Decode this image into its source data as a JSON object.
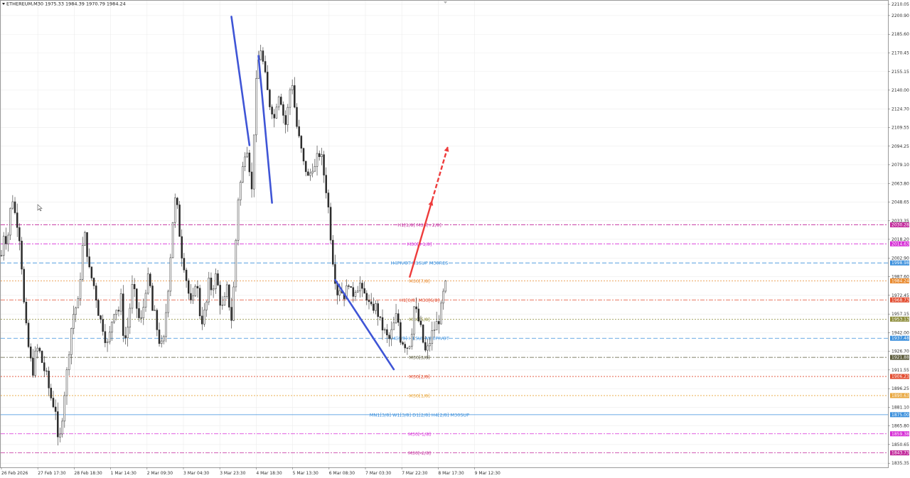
{
  "header": {
    "symbol_line": "ETHEREUM,M30  1975.33 1984.39 1970.79 1984.24"
  },
  "colors": {
    "candle": "#2b2b2b",
    "grid": "#ececec",
    "trendline": "#3f55d6",
    "forecast": "#ee3b3b",
    "axis_text": "#303030"
  },
  "chart_data": {
    "type": "line",
    "title": "ETHEREUM,M30",
    "ohlc_last": {
      "open": 1975.33,
      "high": 1984.39,
      "low": 1970.79,
      "close": 1984.24
    },
    "y_ticks": [
      "2210.05",
      "2200.90",
      "2185.60",
      "2170.45",
      "2155.15",
      "2140.00",
      "2124.70",
      "2109.55",
      "2094.25",
      "2079.10",
      "2063.80",
      "2048.65",
      "2033.35",
      "2018.20",
      "2002.90",
      "1987.60",
      "1972.45",
      "1957.15",
      "1942.00",
      "1926.70",
      "1911.55",
      "1896.25",
      "1881.10",
      "1865.80",
      "1850.65",
      "1835.35"
    ],
    "ylim": [
      1832,
      2213
    ],
    "x_ticks": [
      "26 Feb 2026",
      "27 Feb 17:30",
      "28 Feb 18:30",
      "1 Mar 14:30",
      "2 Mar 09:30",
      "3 Mar 04:30",
      "3 Mar 23:30",
      "4 Mar 18:30",
      "5 Mar 13:30",
      "6 Mar 08:30",
      "7 Mar 03:30",
      "7 Mar 22:30",
      "8 Mar 17:30",
      "9 Mar 12:30"
    ],
    "grid": true,
    "price_path": [
      2005,
      2028,
      2012,
      2040,
      2052,
      2035,
      2030,
      2002,
      1962,
      1938,
      1922,
      1910,
      1925,
      1930,
      1920,
      1912,
      1905,
      1892,
      1885,
      1880,
      1845,
      1865,
      1890,
      1910,
      1935,
      1955,
      1962,
      1966,
      1998,
      2025,
      2010,
      1990,
      1985,
      1975,
      1960,
      1950,
      1945,
      1930,
      1940,
      1955,
      1965,
      1958,
      1970,
      1935,
      1940,
      1960,
      1980,
      1970,
      1955,
      1950,
      1965,
      1985,
      1985,
      1960,
      1955,
      1940,
      1930,
      1935,
      1965,
      1990,
      2030,
      2050,
      2040,
      2010,
      2000,
      1985,
      1970,
      1960,
      1985,
      1975,
      1950,
      1955,
      1965,
      1985,
      1975,
      1990,
      1980,
      1965,
      1960,
      1980,
      1965,
      1950,
      2000,
      2050,
      2065,
      2080,
      2100,
      2080,
      2055,
      2130,
      2160,
      2175,
      2160,
      2145,
      2130,
      2125,
      2115,
      2140,
      2135,
      2120,
      2110,
      2135,
      2150,
      2125,
      2105,
      2095,
      2080,
      2075,
      2065,
      2080,
      2075,
      2085,
      2090,
      2075,
      2060,
      2040,
      2010,
      1990,
      1975,
      1980,
      1972,
      1975,
      1985,
      1970,
      1978,
      1980,
      1982,
      1970,
      1975,
      1965,
      1960,
      1965,
      1960,
      1950,
      1945,
      1940,
      1935,
      1942,
      1950,
      1958,
      1938,
      1935,
      1932,
      1930,
      1942,
      1965,
      1955,
      1948,
      1935,
      1925,
      1930,
      1940,
      1945,
      1950,
      1955,
      1970,
      1984.24
    ],
    "levels": [
      {
        "price": 2030.0,
        "label": "H1[1/8] M30[+2/8]",
        "tag": "2030.28",
        "color": "#c2299b",
        "dash": "6,2,2,2"
      },
      {
        "price": 2014.5,
        "label": "M30[+1/8]",
        "tag": "2014.63",
        "color": "#d52bd5",
        "dash": "6,2,2,2"
      },
      {
        "price": 1998.9,
        "label": "H4PIVOT H1SUP M30RES",
        "tag": "1998.98",
        "color": "#3a8fdc",
        "dash": "6,3"
      },
      {
        "price": 1984.24,
        "label": "M30[7/8]",
        "tag": "1984.24",
        "color": "#e8892d",
        "dash": "2,2"
      },
      {
        "price": 1968.7,
        "label": "H1[0/8] M30[6/8]",
        "tag": "1968.73",
        "color": "#e24a2d",
        "dash": "6,2,2,2"
      },
      {
        "price": 1953.0,
        "label": "M30[5/8]",
        "tag": "1953.13",
        "color": "#8c8c3a",
        "dash": "2,2"
      },
      {
        "price": 1937.4,
        "label": "H4[3/8] H1SUP M30PIVOT",
        "tag": "1937.48",
        "color": "#3a8fdc",
        "dash": "6,3"
      },
      {
        "price": 1921.8,
        "label": "M30[3/8]",
        "tag": "1921.88",
        "color": "#5a5a3a",
        "dash": "6,2,2,2"
      },
      {
        "price": 1906.2,
        "label": "M30[2/8]",
        "tag": "1906.23",
        "color": "#e24a2d",
        "dash": "2,2"
      },
      {
        "price": 1890.6,
        "label": "M30[1/8]",
        "tag": "1890.63",
        "color": "#e8a53a",
        "dash": "2,2"
      },
      {
        "price": 1875.0,
        "label": "MN1[3/8] W1[3/8] D1[2/8] H4[2/8] M30SUP",
        "tag": "1875.00",
        "color": "#3a8fdc",
        "dash": ""
      },
      {
        "price": 1859.4,
        "label": "M30[-1/8]",
        "tag": "1859.38",
        "color": "#d52bd5",
        "dash": "6,2,2,2"
      },
      {
        "price": 1843.8,
        "label": "M30[-2/8]",
        "tag": "1843.73",
        "color": "#c2299b",
        "dash": "6,2,2,2"
      }
    ],
    "trendlines": [
      {
        "from": {
          "bar": 102,
          "price": 2200
        },
        "to": {
          "bar": 110,
          "price": 2095
        }
      },
      {
        "from": {
          "bar": 114,
          "price": 2168
        },
        "to": {
          "bar": 120,
          "price": 2048
        }
      },
      {
        "from": {
          "bar": 148,
          "price": 1985
        },
        "to": {
          "bar": 174,
          "price": 1912
        }
      }
    ],
    "forecast": {
      "solid": {
        "from": {
          "bar": 181,
          "price": 1987
        },
        "to": {
          "bar": 191,
          "price": 2050
        }
      },
      "dashed": {
        "from": {
          "bar": 191,
          "price": 2050
        },
        "to": {
          "bar": 198,
          "price": 2094
        }
      }
    },
    "total_bars": 360
  }
}
